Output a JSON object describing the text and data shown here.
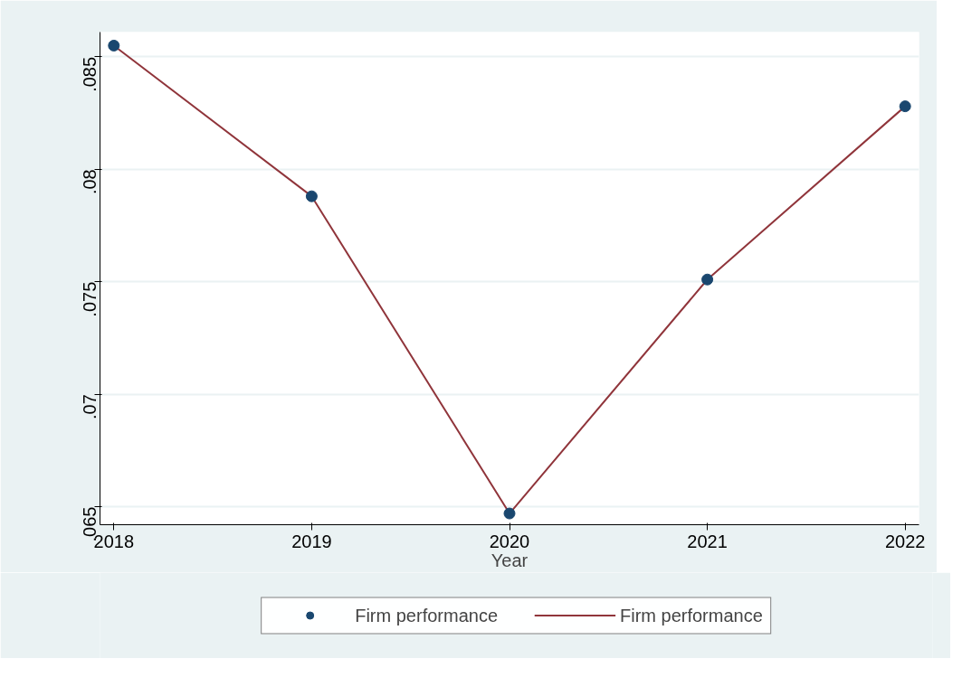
{
  "chart_data": {
    "type": "line",
    "xlabel": "Year",
    "x": [
      2018,
      2019,
      2020,
      2021,
      2022
    ],
    "series": [
      {
        "name": "Firm performance",
        "type": "scatter",
        "color": "#1a476f",
        "marker": "circle",
        "values": [
          0.0855,
          0.0788,
          0.0647,
          0.0751,
          0.0828
        ]
      },
      {
        "name": "Firm performance",
        "color": "#90353b",
        "line_style": "solid",
        "values": [
          0.0855,
          0.0788,
          0.0647,
          0.0751,
          0.0828
        ]
      }
    ],
    "xlim": [
      2017.93,
      2022.07
    ],
    "xticks": [
      2018,
      2019,
      2020,
      2021,
      2022
    ],
    "ylim": [
      0.0642,
      0.0861
    ],
    "yticks": [
      {
        "value": 0.065,
        "label": ".065"
      },
      {
        "value": 0.07,
        "label": ".07"
      },
      {
        "value": 0.075,
        "label": ".075"
      },
      {
        "value": 0.08,
        "label": ".08"
      },
      {
        "value": 0.085,
        "label": ".085"
      }
    ],
    "grid": "y",
    "legend": "bottom"
  }
}
